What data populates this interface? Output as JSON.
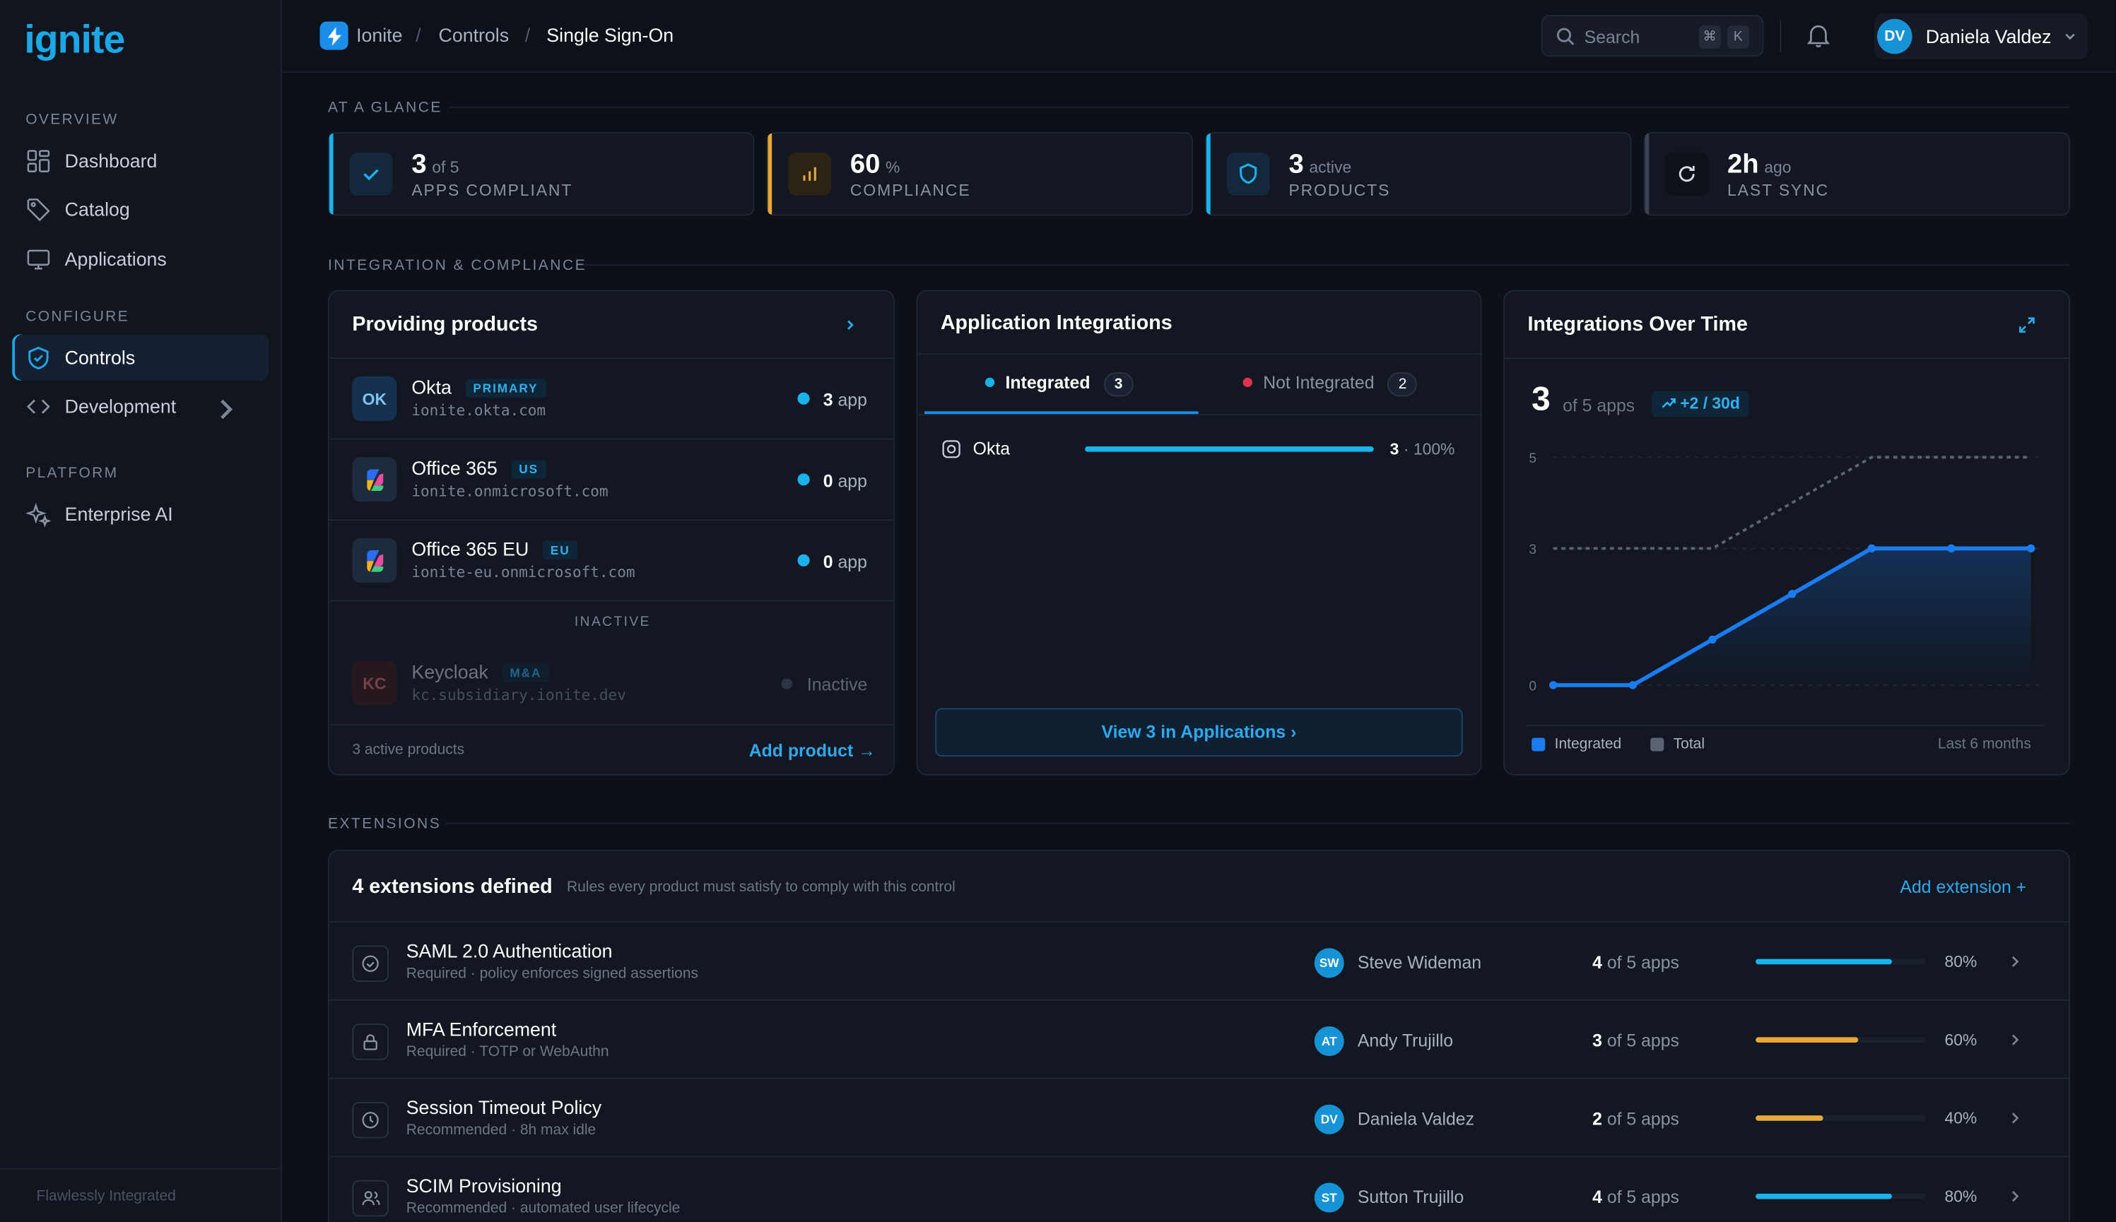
{
  "brand": {
    "logo": "ignite",
    "footer": "Flawlessly Integrated"
  },
  "nav": {
    "sections": [
      {
        "label": "OVERVIEW",
        "items": [
          {
            "label": "Dashboard",
            "icon": "grid-icon"
          },
          {
            "label": "Catalog",
            "icon": "tag-icon"
          },
          {
            "label": "Applications",
            "icon": "monitor-icon"
          }
        ]
      },
      {
        "label": "CONFIGURE",
        "items": [
          {
            "label": "Controls",
            "icon": "shield-icon",
            "active": true
          },
          {
            "label": "Development",
            "icon": "code-icon"
          }
        ]
      },
      {
        "label": "PLATFORM",
        "items": [
          {
            "label": "Enterprise AI",
            "icon": "sparkle-icon"
          }
        ]
      }
    ]
  },
  "breadcrumb": {
    "root": "Ionite",
    "sep": "/",
    "parent": "Controls",
    "current": "Single Sign-On"
  },
  "search": {
    "placeholder": "Search",
    "kbd1": "⌘",
    "kbd2": "K"
  },
  "user": {
    "initials": "DV",
    "name": "Daniela Valdez"
  },
  "glance": {
    "label": "AT A GLANCE",
    "stats": [
      {
        "value": "3",
        "sub": "of 5",
        "label": "APPS COMPLIANT",
        "accent": "#1ab2ea",
        "icon": "check-icon"
      },
      {
        "value": "60",
        "sub": "%",
        "label": "COMPLIANCE",
        "accent": "#e9a837",
        "icon": "bar-chart-icon"
      },
      {
        "value": "3",
        "sub": "active",
        "label": "PRODUCTS",
        "accent": "#1ab2ea",
        "icon": "shield-icon"
      },
      {
        "value": "2h",
        "sub": "ago",
        "label": "LAST SYNC",
        "accent": "#3a4252",
        "icon": "refresh-icon"
      }
    ]
  },
  "integration_section": {
    "label": "INTEGRATION & COMPLIANCE"
  },
  "providers": {
    "title": "Providing products",
    "items": [
      {
        "initials": "OK",
        "name": "Okta",
        "tag": "PRIMARY",
        "domain": "ionite.okta.com",
        "count": "3",
        "unit": "app"
      },
      {
        "initials": "",
        "name": "Office 365",
        "tag": "US",
        "domain": "ionite.onmicrosoft.com",
        "count": "0",
        "unit": "app"
      },
      {
        "initials": "",
        "name": "Office 365 EU",
        "tag": "EU",
        "domain": "ionite-eu.onmicrosoft.com",
        "count": "0",
        "unit": "app"
      }
    ],
    "inactive_label": "INACTIVE",
    "inactive": {
      "initials": "KC",
      "name": "Keycloak",
      "tag": "M&A",
      "domain": "kc.subsidiary.ionite.dev",
      "status": "Inactive"
    },
    "footer": "3 active products",
    "add": "Add product →"
  },
  "integrations": {
    "title": "Application Integrations",
    "tab_integrated": "Integrated",
    "tab_integrated_count": "3",
    "tab_not": "Not Integrated",
    "tab_not_count": "2",
    "row": {
      "name": "Okta",
      "count": "3",
      "pct": "· 100%",
      "fraction": 1.0
    },
    "button": "View 3 in Applications ›"
  },
  "overtime": {
    "title": "Integrations Over Time",
    "value": "3",
    "sub": "of 5 apps",
    "delta": "+2 / 30d",
    "legend_integrated": "Integrated",
    "legend_total": "Total",
    "range": "Last 6 months"
  },
  "chart_data": {
    "type": "line",
    "ylim": [
      0,
      5
    ],
    "yticks": [
      "5",
      "3",
      "0"
    ],
    "x": [
      1,
      2,
      3,
      4,
      5,
      6,
      7
    ],
    "series": [
      {
        "name": "Integrated",
        "values": [
          0,
          0,
          1,
          2,
          3,
          3,
          3
        ],
        "color": "#1a7cf0"
      },
      {
        "name": "Total",
        "values": [
          3,
          3,
          3,
          4,
          5,
          5,
          5
        ],
        "color": "#5b6375"
      }
    ]
  },
  "extensions": {
    "label": "EXTENSIONS",
    "title": "4 extensions defined",
    "subtitle": "Rules every product must satisfy to comply with this control",
    "add": "Add extension +",
    "items": [
      {
        "name": "SAML 2.0 Authentication",
        "desc": "Required · policy enforces signed assertions",
        "initials": "SW",
        "owner": "Steve Wideman",
        "apps": "4",
        "apps_of": "of 5 apps",
        "pct": "80%",
        "fraction": 0.8,
        "color": "#1ab2ea",
        "icon": "check-circle-icon"
      },
      {
        "name": "MFA Enforcement",
        "desc": "Required · TOTP or WebAuthn",
        "initials": "AT",
        "owner": "Andy Trujillo",
        "apps": "3",
        "apps_of": "of 5 apps",
        "pct": "60%",
        "fraction": 0.6,
        "color": "#e9a837",
        "icon": "lock-icon"
      },
      {
        "name": "Session Timeout Policy",
        "desc": "Recommended · 8h max idle",
        "initials": "DV",
        "owner": "Daniela Valdez",
        "apps": "2",
        "apps_of": "of 5 apps",
        "pct": "40%",
        "fraction": 0.4,
        "color": "#e9a837",
        "icon": "clock-icon"
      },
      {
        "name": "SCIM Provisioning",
        "desc": "Recommended · automated user lifecycle",
        "initials": "ST",
        "owner": "Sutton Trujillo",
        "apps": "4",
        "apps_of": "of 5 apps",
        "pct": "80%",
        "fraction": 0.8,
        "color": "#1ab2ea",
        "icon": "users-icon"
      }
    ]
  }
}
